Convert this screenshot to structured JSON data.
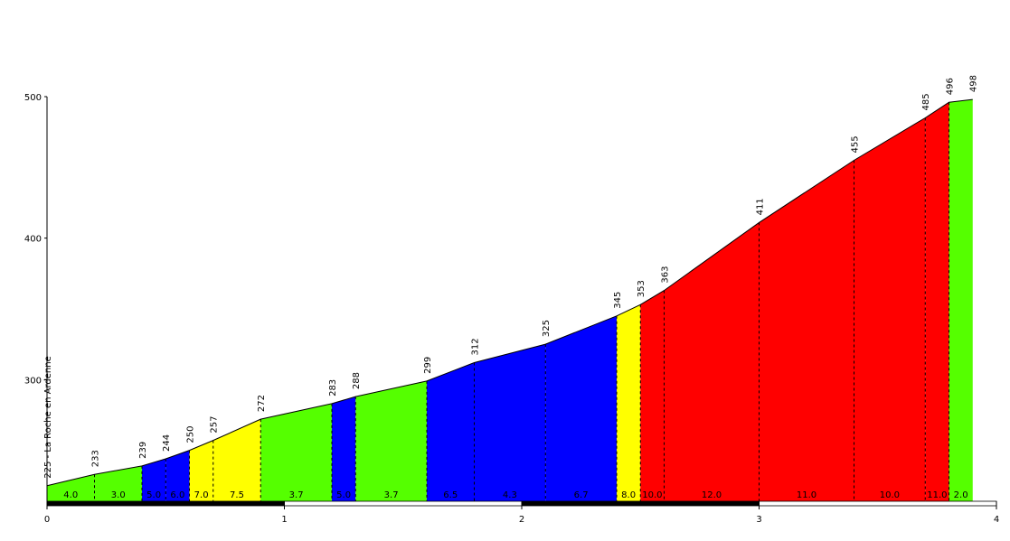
{
  "chart_data": {
    "type": "profile",
    "distances": [
      0,
      0.2,
      0.4,
      0.5,
      0.6,
      0.7,
      0.9,
      1.2,
      1.3,
      1.6,
      1.8,
      2.1,
      2.4,
      2.5,
      2.6,
      3.0,
      3.4,
      3.7,
      3.8,
      3.9
    ],
    "elevations": [
      225,
      233,
      239,
      244,
      250,
      257,
      272,
      283,
      288,
      299,
      312,
      325,
      345,
      353,
      363,
      411,
      455,
      485,
      496,
      498
    ],
    "elevation_labels": [
      "225 - La Roche en Ardenne",
      "233",
      "239",
      "244",
      "250",
      "257",
      "272",
      "283",
      "288",
      "299",
      "312",
      "325",
      "345",
      "353",
      "363",
      "411",
      "455",
      "485",
      "496",
      "498"
    ],
    "grades": [
      4,
      3,
      5,
      6,
      7,
      7.5,
      3.7,
      5,
      3.7,
      6.5,
      4.3,
      6.7,
      8,
      10,
      12,
      11,
      10,
      11,
      2
    ],
    "grade_labels": [
      "4.0",
      "3.0",
      "5.0",
      "6.0",
      "7.0",
      "7.5",
      "3.7",
      "5.0",
      "3.7",
      "6.5",
      "4.3",
      "6.7",
      "8.0",
      "10.0",
      "12.0",
      "11.0",
      "10.0",
      "11.0",
      "2.0"
    ],
    "segment_colors": [
      "#55ff00",
      "#55ff00",
      "#0000ff",
      "#0000ff",
      "#ffff00",
      "#ffff00",
      "#55ff00",
      "#0000ff",
      "#55ff00",
      "#0000ff",
      "#0000ff",
      "#0000ff",
      "#ffff00",
      "#ff0000",
      "#ff0000",
      "#ff0000",
      "#ff0000",
      "#ff0000",
      "#55ff00"
    ],
    "xlim": [
      0,
      4
    ],
    "xticks": [
      0,
      1,
      2,
      3,
      4
    ],
    "ylim": [
      214,
      500
    ],
    "yticks": [
      300,
      400,
      500
    ]
  }
}
